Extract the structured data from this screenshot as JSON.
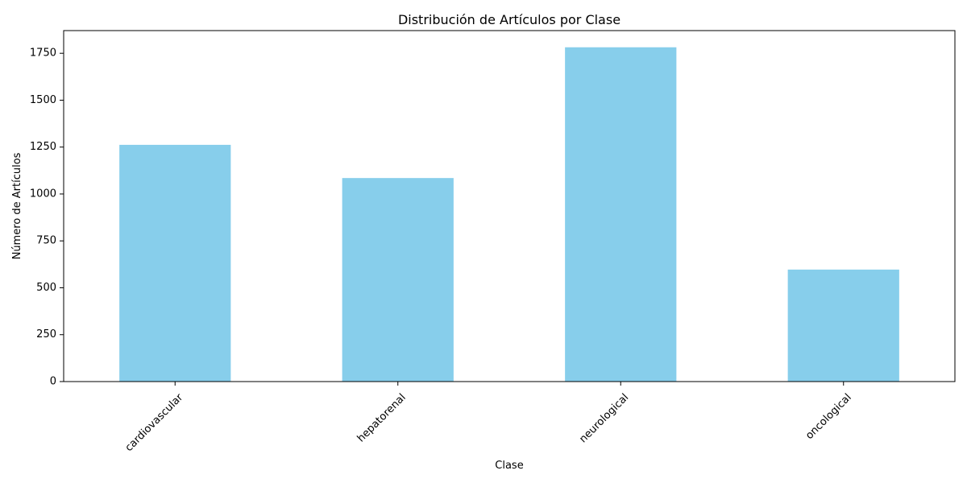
{
  "chart_data": {
    "type": "bar",
    "title": "Distribución de Artículos por Clase",
    "xlabel": "Clase",
    "ylabel": "Número de Artículos",
    "categories": [
      "cardiovascular",
      "hepatorenal",
      "neurological",
      "oncological"
    ],
    "values": [
      1262,
      1085,
      1782,
      597
    ],
    "ylim": [
      0,
      1871
    ],
    "yticks": [
      0,
      250,
      500,
      750,
      1000,
      1250,
      1500,
      1750
    ],
    "x_tick_rotation": 45,
    "bar_color": "#87ceeb",
    "grid": false,
    "legend": "none"
  }
}
